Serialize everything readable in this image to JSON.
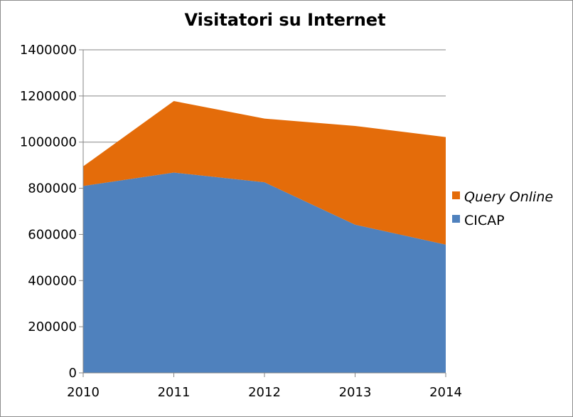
{
  "chart_data": {
    "type": "area",
    "stacked": true,
    "title": "Visitatori su Internet",
    "xlabel": "",
    "ylabel": "",
    "categories": [
      "2010",
      "2011",
      "2012",
      "2013",
      "2014"
    ],
    "ylim": [
      0,
      1400000
    ],
    "yticks": [
      0,
      200000,
      400000,
      600000,
      800000,
      1000000,
      1200000,
      1400000
    ],
    "grid": true,
    "legend_position": "right",
    "series": [
      {
        "name": "CICAP",
        "color": "#4F81BD",
        "italic": false,
        "values": [
          810000,
          868000,
          826000,
          642000,
          556000
        ]
      },
      {
        "name": "Query Online",
        "color": "#E46C0A",
        "italic": true,
        "values": [
          85000,
          310000,
          276000,
          428000,
          466000
        ]
      }
    ]
  }
}
